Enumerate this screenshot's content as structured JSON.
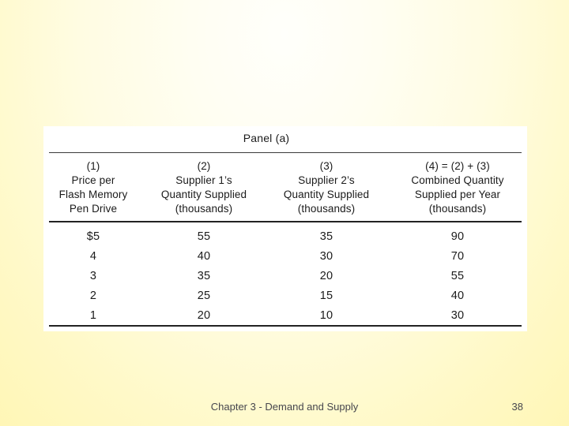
{
  "slide": {
    "footer": {
      "chapter_text": "Chapter 3 - Demand and Supply",
      "page_number": "38"
    },
    "colors": {
      "background_edge": "#fff6b4",
      "background_center": "#fffffb",
      "panel_background": "#ffffff",
      "table_text": "#1b1b1b",
      "footer_text": "#46464d",
      "rule": "#222222"
    }
  },
  "panel_table": {
    "title": "Panel (a)",
    "columns": [
      {
        "header_lines": [
          "(1)",
          "Price per",
          "Flash Memory",
          "Pen Drive"
        ]
      },
      {
        "header_lines": [
          "(2)",
          "Supplier 1’s",
          "Quantity Supplied",
          "(thousands)"
        ]
      },
      {
        "header_lines": [
          "(3)",
          "Supplier 2’s",
          "Quantity Supplied",
          "(thousands)"
        ]
      },
      {
        "header_lines": [
          "(4) = (2) + (3)",
          "Combined Quantity",
          "Supplied per Year",
          "(thousands)"
        ]
      }
    ],
    "rows": [
      [
        "$5",
        "55",
        "35",
        "90"
      ],
      [
        "4",
        "40",
        "30",
        "70"
      ],
      [
        "3",
        "35",
        "20",
        "55"
      ],
      [
        "2",
        "25",
        "15",
        "40"
      ],
      [
        "1",
        "20",
        "10",
        "30"
      ]
    ]
  }
}
